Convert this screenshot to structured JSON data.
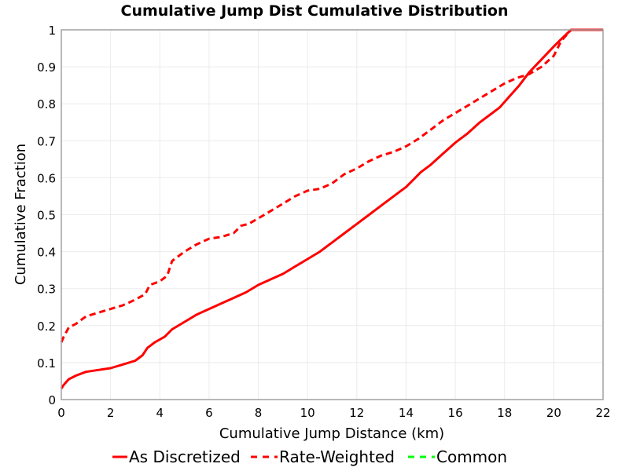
{
  "chart_data": {
    "type": "line",
    "title": "Cumulative Jump Dist Cumulative Distribution",
    "xlabel": "Cumulative Jump Distance (km)",
    "ylabel": "Cumulative Fraction",
    "xlim": [
      0,
      22
    ],
    "ylim": [
      0,
      1
    ],
    "xticks": [
      0,
      2,
      4,
      6,
      8,
      10,
      12,
      14,
      16,
      18,
      20,
      22
    ],
    "yticks": [
      0,
      0.1,
      0.2,
      0.3,
      0.4,
      0.5,
      0.6,
      0.7,
      0.8,
      0.9,
      1
    ],
    "ytick_labels": [
      "0",
      "0.1",
      "0.2",
      "0.3",
      "0.4",
      "0.5",
      "0.6",
      "0.7",
      "0.8",
      "0.9",
      "1"
    ],
    "grid": true,
    "legend_position": "bottom",
    "series": [
      {
        "name": "As Discretized",
        "color": "#ff0000",
        "style": "solid",
        "x": [
          0,
          0.1,
          0.3,
          0.6,
          1.0,
          1.5,
          2.0,
          2.5,
          3.0,
          3.3,
          3.5,
          3.8,
          4.2,
          4.5,
          5.0,
          5.5,
          6.0,
          6.5,
          7.0,
          7.5,
          8.0,
          8.5,
          9.0,
          9.5,
          10.0,
          10.5,
          11.0,
          11.5,
          12.0,
          12.5,
          13.0,
          13.5,
          14.0,
          14.3,
          14.6,
          15.0,
          15.5,
          16.0,
          16.5,
          17.0,
          17.5,
          17.8,
          18.2,
          18.6,
          19.0,
          19.5,
          20.0,
          20.3,
          20.7,
          21.0,
          22.0
        ],
        "y": [
          0.03,
          0.04,
          0.055,
          0.065,
          0.075,
          0.08,
          0.085,
          0.095,
          0.105,
          0.12,
          0.14,
          0.155,
          0.17,
          0.19,
          0.21,
          0.23,
          0.245,
          0.26,
          0.275,
          0.29,
          0.31,
          0.325,
          0.34,
          0.36,
          0.38,
          0.4,
          0.425,
          0.45,
          0.475,
          0.5,
          0.525,
          0.55,
          0.575,
          0.595,
          0.615,
          0.635,
          0.665,
          0.695,
          0.72,
          0.75,
          0.775,
          0.79,
          0.82,
          0.85,
          0.885,
          0.92,
          0.955,
          0.975,
          1.0,
          1.0,
          1.0
        ]
      },
      {
        "name": "Rate-Weighted",
        "color": "#ff0000",
        "style": "dashed",
        "x": [
          0,
          0.1,
          0.3,
          0.6,
          1.0,
          1.5,
          2.0,
          2.5,
          3.0,
          3.4,
          3.6,
          4.0,
          4.3,
          4.5,
          5.0,
          5.5,
          6.0,
          6.5,
          7.0,
          7.3,
          7.6,
          8.0,
          8.5,
          9.0,
          9.5,
          10.0,
          10.5,
          11.0,
          11.5,
          12.0,
          12.5,
          13.0,
          13.5,
          14.0,
          14.5,
          15.0,
          15.5,
          16.0,
          16.5,
          17.0,
          17.5,
          18.0,
          18.5,
          19.0,
          19.5,
          20.0,
          20.3,
          20.7,
          21.0,
          22.0
        ],
        "y": [
          0.155,
          0.17,
          0.195,
          0.205,
          0.225,
          0.235,
          0.245,
          0.255,
          0.27,
          0.285,
          0.31,
          0.32,
          0.335,
          0.375,
          0.4,
          0.42,
          0.435,
          0.44,
          0.45,
          0.47,
          0.475,
          0.49,
          0.51,
          0.53,
          0.55,
          0.565,
          0.57,
          0.585,
          0.61,
          0.625,
          0.645,
          0.66,
          0.67,
          0.685,
          0.705,
          0.73,
          0.755,
          0.775,
          0.795,
          0.815,
          0.835,
          0.855,
          0.87,
          0.88,
          0.9,
          0.93,
          0.97,
          1.0,
          1.0,
          1.0
        ]
      },
      {
        "name": "Common",
        "color": "#00ff00",
        "style": "dashed",
        "x": [],
        "y": []
      }
    ]
  }
}
